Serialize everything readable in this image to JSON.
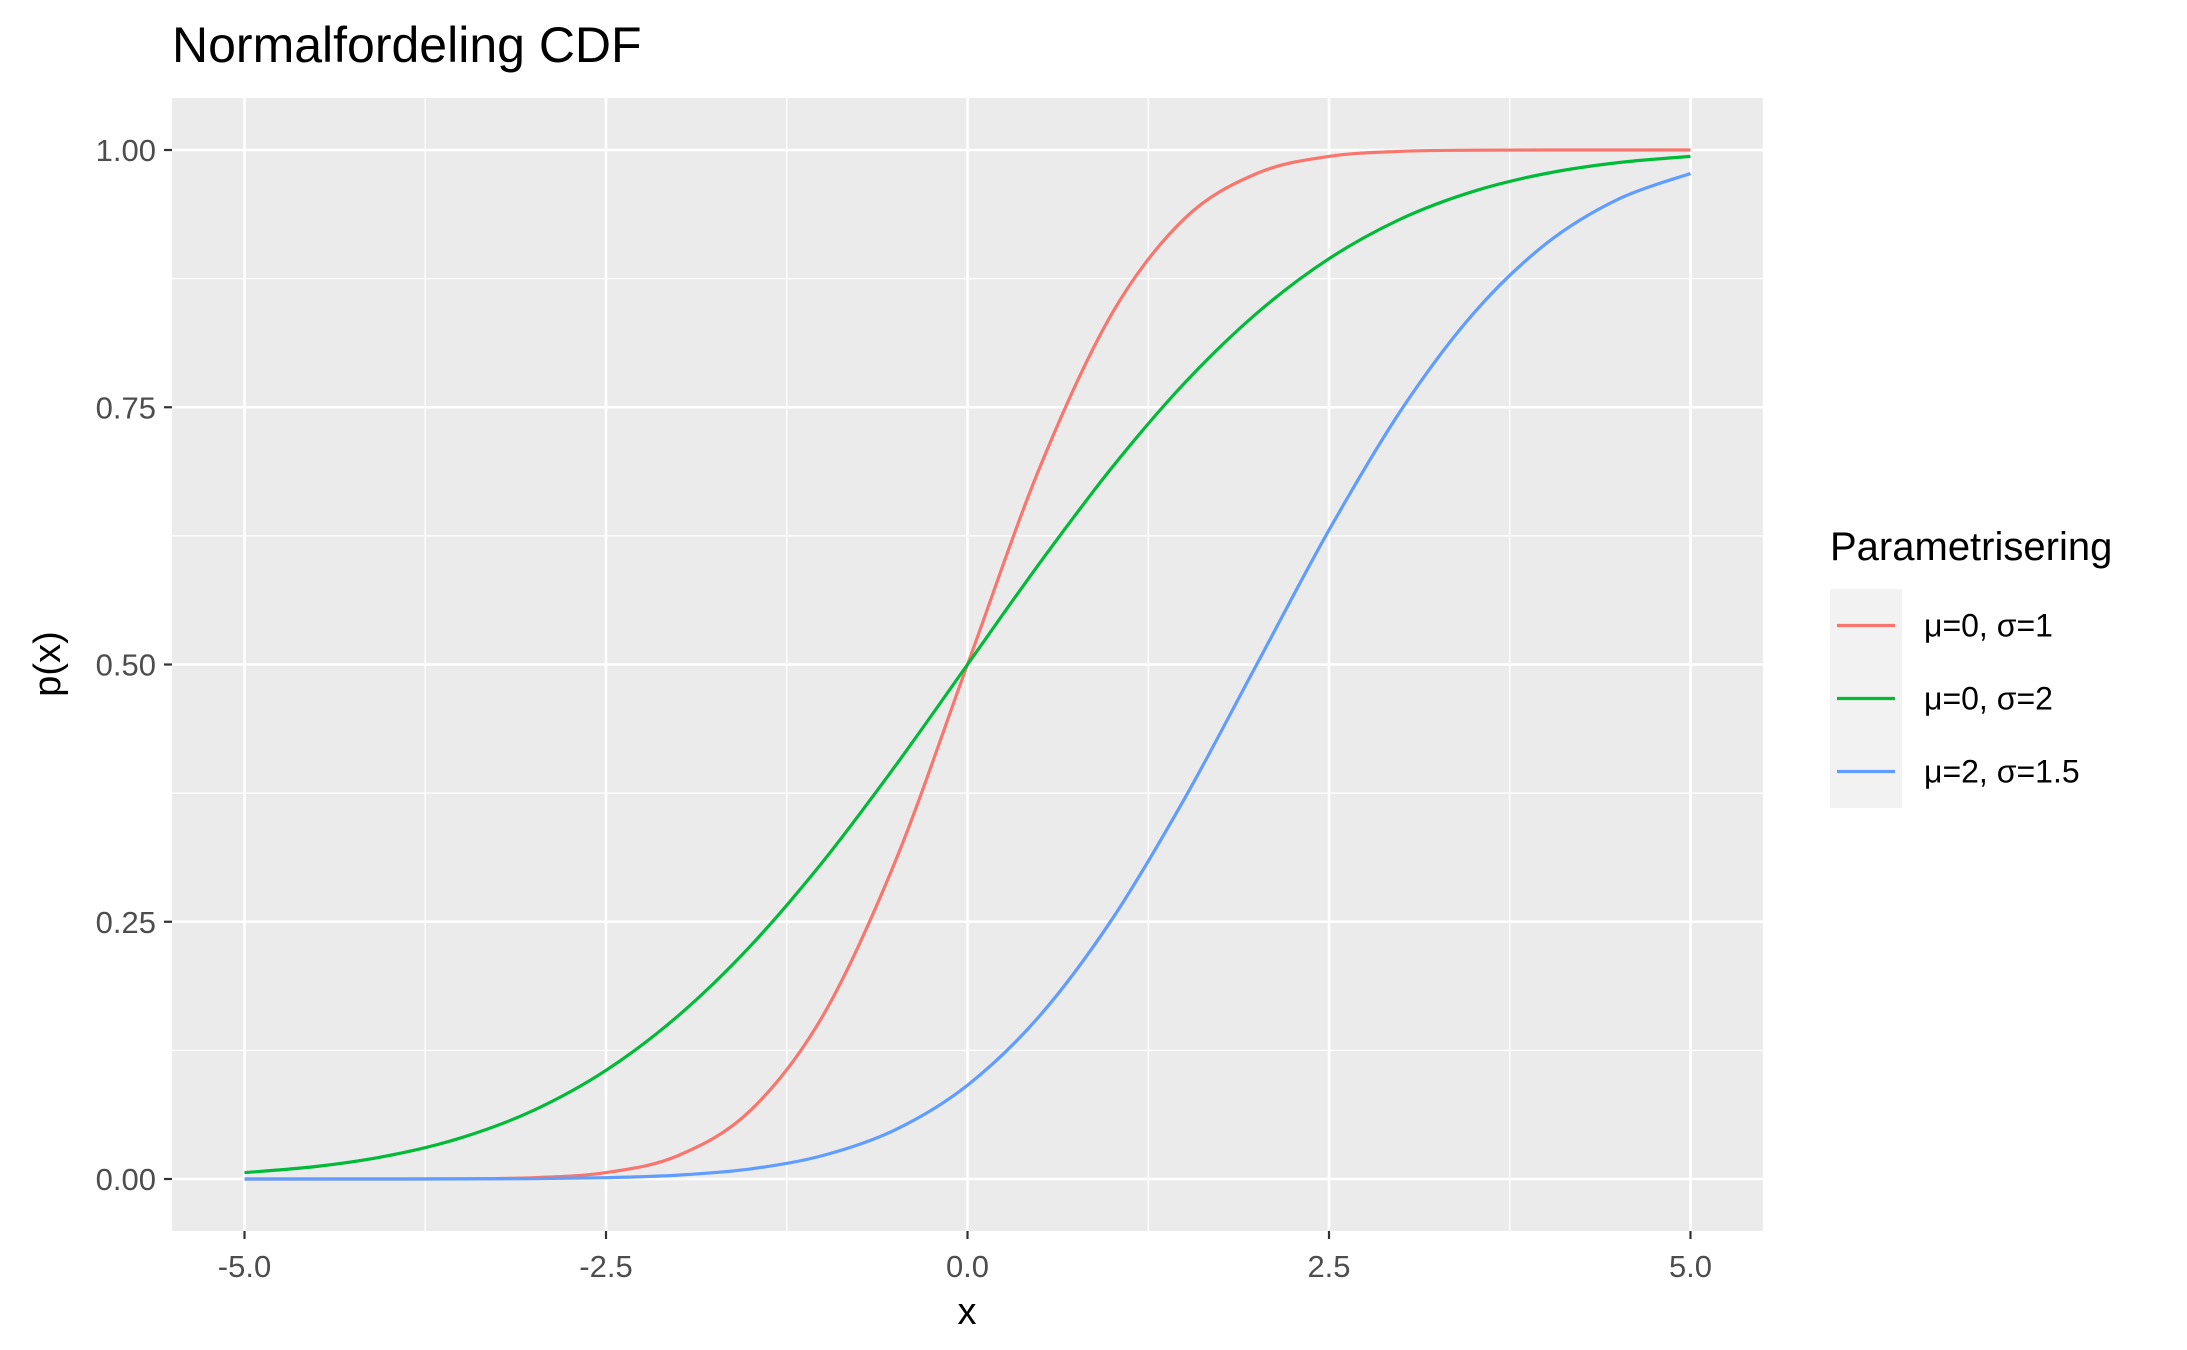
{
  "chart_data": {
    "type": "line",
    "title": "Normalfordeling CDF",
    "xlabel": "x",
    "ylabel": "p(x)",
    "xlim": [
      -5.0,
      5.0
    ],
    "ylim": [
      0.0,
      1.0
    ],
    "x_ticks": [
      "-5.0",
      "-2.5",
      "0.0",
      "2.5",
      "5.0"
    ],
    "y_ticks": [
      "0.00",
      "0.25",
      "0.50",
      "0.75",
      "1.00"
    ],
    "grid": true,
    "legend": {
      "title": "Parametrisering",
      "position": "right"
    },
    "x": [
      -5,
      -4.5,
      -4,
      -3.5,
      -3,
      -2.5,
      -2,
      -1.5,
      -1,
      -0.5,
      0,
      0.5,
      1,
      1.5,
      2,
      2.5,
      3,
      3.5,
      4,
      4.5,
      5
    ],
    "series": [
      {
        "name": "μ=0, σ=1",
        "color": "#F8766D",
        "values": [
          0.0,
          0.0,
          0.0,
          0.0002,
          0.0013,
          0.0062,
          0.0228,
          0.0668,
          0.1587,
          0.3085,
          0.5,
          0.6915,
          0.8413,
          0.9332,
          0.9772,
          0.9938,
          0.9987,
          0.9998,
          1.0,
          1.0,
          1.0
        ]
      },
      {
        "name": "μ=0, σ=2",
        "color": "#00BA38",
        "values": [
          0.0062,
          0.0122,
          0.0228,
          0.0401,
          0.0668,
          0.1056,
          0.1587,
          0.2266,
          0.3085,
          0.4013,
          0.5,
          0.5987,
          0.6915,
          0.7734,
          0.8413,
          0.8944,
          0.9332,
          0.9599,
          0.9772,
          0.9878,
          0.9938
        ]
      },
      {
        "name": "μ=2, σ=1.5",
        "color": "#619CFF",
        "values": [
          0.0,
          0.0,
          0.0,
          0.0001,
          0.0004,
          0.0013,
          0.0038,
          0.0098,
          0.0228,
          0.0478,
          0.0912,
          0.1587,
          0.2525,
          0.3694,
          0.5,
          0.6306,
          0.7475,
          0.8413,
          0.9088,
          0.9522,
          0.9772
        ]
      }
    ]
  }
}
